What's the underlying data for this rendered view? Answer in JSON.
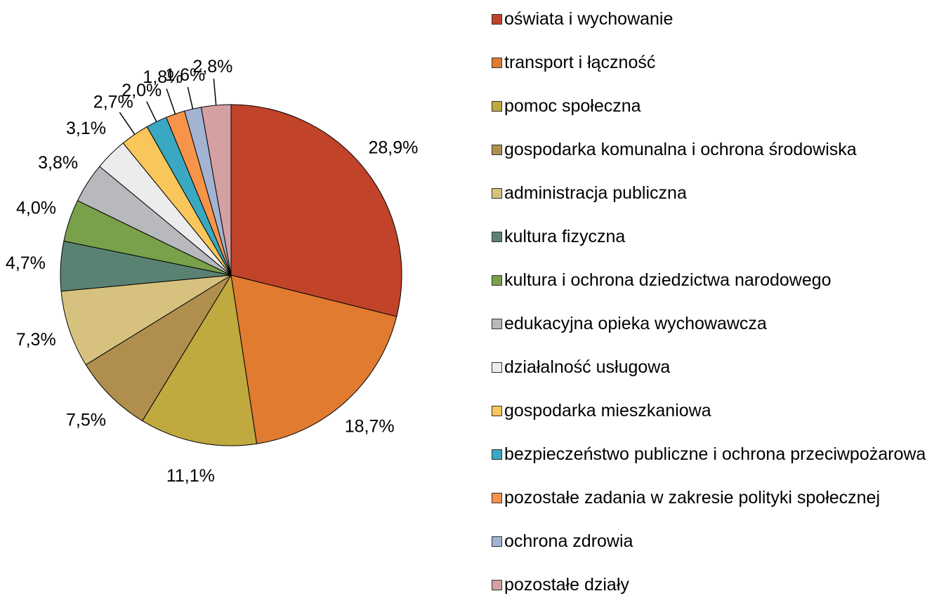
{
  "chart_data": {
    "type": "pie",
    "categories": [
      "oświata i wychowanie",
      "transport i łączność",
      "pomoc społeczna",
      "gospodarka komunalna i ochrona środowiska",
      "administracja publiczna",
      "kultura fizyczna",
      "kultura i ochrona dziedzictwa narodowego",
      "edukacyjna opieka wychowawcza",
      "działalność usługowa",
      "gospodarka mieszkaniowa",
      "bezpieczeństwo publiczne i ochrona przeciwpożarowa",
      "pozostałe zadania w zakresie polityki społecznej",
      "ochrona zdrowia",
      "pozostałe działy"
    ],
    "values": [
      28.9,
      18.7,
      11.1,
      7.5,
      7.3,
      4.7,
      4.0,
      3.8,
      3.1,
      2.7,
      2.0,
      1.8,
      1.6,
      2.8
    ],
    "value_labels": [
      "28,9%",
      "18,7%",
      "11,1%",
      "7,5%",
      "7,3%",
      "4,7%",
      "4,0%",
      "3,8%",
      "3,1%",
      "2,7%",
      "2,0%",
      "1,8%",
      "1,6%",
      "2,8%"
    ],
    "colors": [
      "#c0432a",
      "#e07b30",
      "#c0a93f",
      "#b08f4e",
      "#d6c27e",
      "#5a8273",
      "#79a04a",
      "#b8b9bc",
      "#ececec",
      "#f8c65a",
      "#3aa8c3",
      "#f79449",
      "#a2b4d2",
      "#d4a0a2"
    ],
    "legend": "right"
  }
}
